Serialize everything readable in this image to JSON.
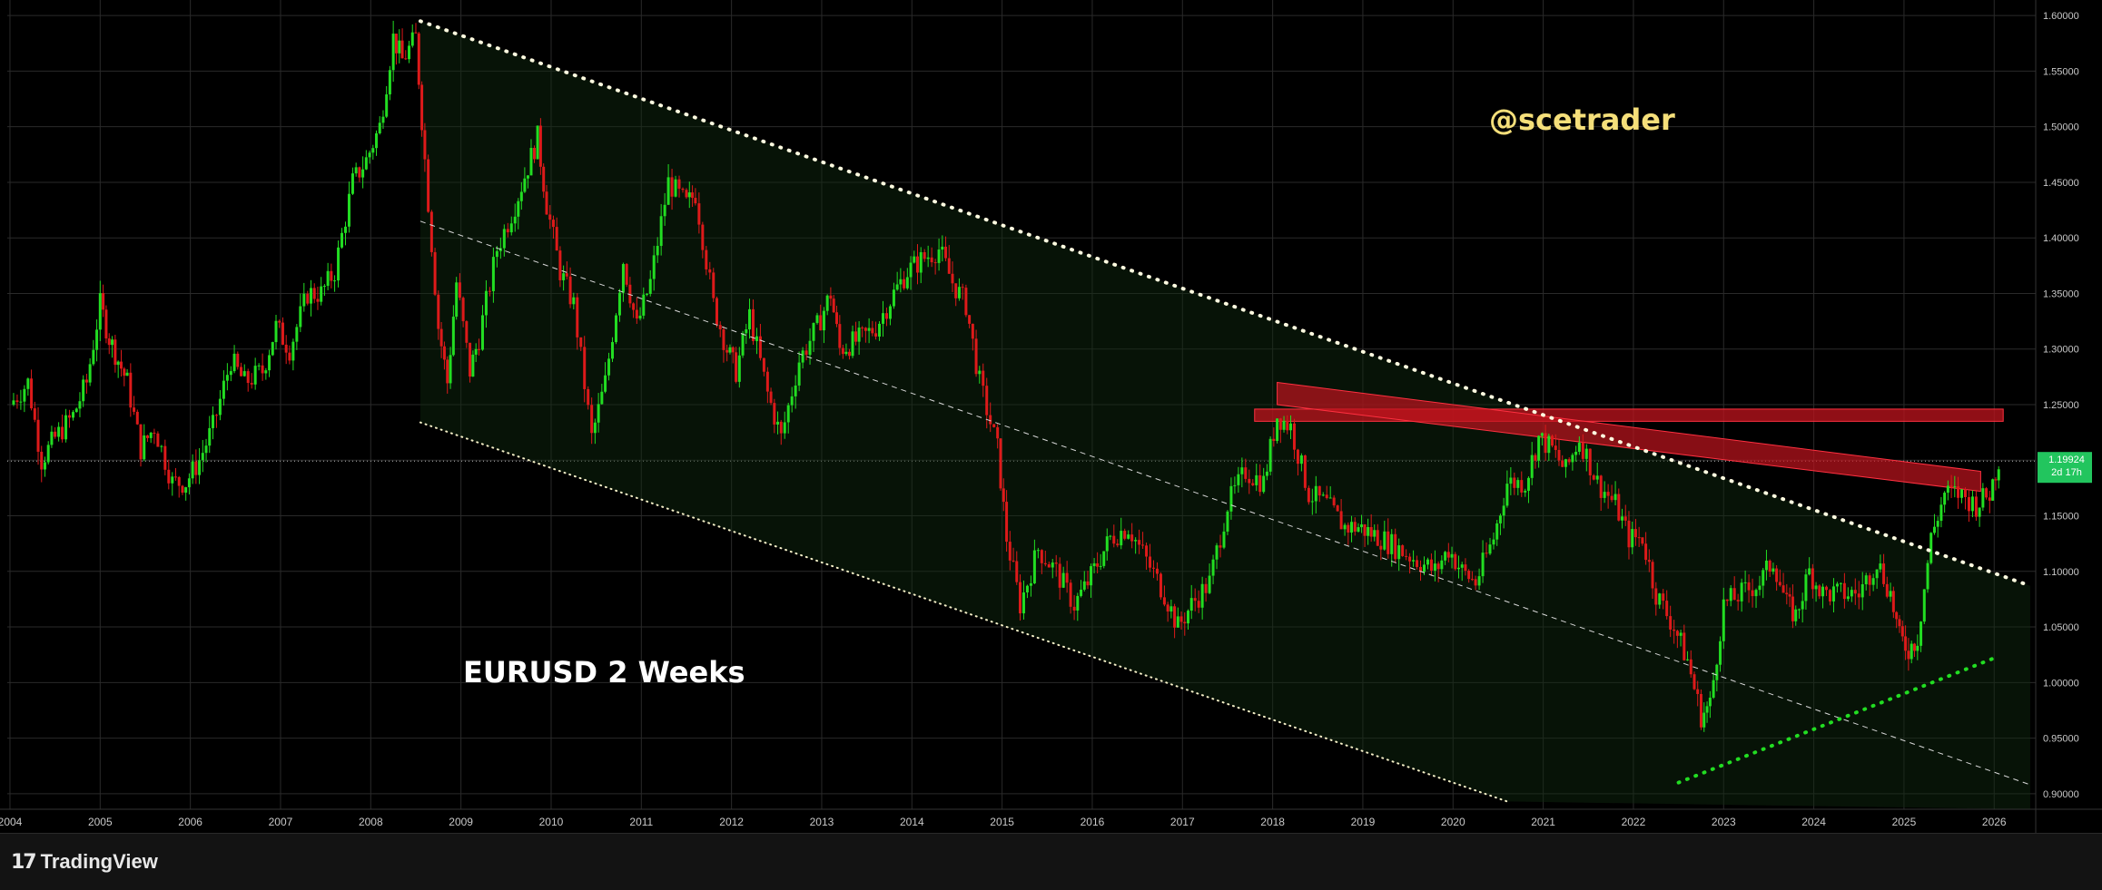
{
  "chart_data": {
    "type": "candlestick",
    "symbol_label": "EURUSD 2 Weeks",
    "watermark": "@scetrader",
    "x_axis_years": [
      "2004",
      "2005",
      "2006",
      "2007",
      "2008",
      "2009",
      "2010",
      "2011",
      "2012",
      "2013",
      "2014",
      "2015",
      "2016",
      "2017",
      "2018",
      "2019",
      "2020",
      "2021",
      "2022",
      "2023",
      "2024",
      "2025",
      "2026"
    ],
    "y_axis_ticks": [
      "1.60000",
      "1.55000",
      "1.50000",
      "1.45000",
      "1.40000",
      "1.35000",
      "1.30000",
      "1.25000",
      "1.20000",
      "1.15000",
      "1.10000",
      "1.05000",
      "1.00000",
      "0.95000",
      "0.90000"
    ],
    "ylim": [
      0.886,
      1.614
    ],
    "xlim": [
      2003.97,
      2026.4
    ],
    "last_price": {
      "value": 1.19924,
      "label": "1.19924",
      "countdown": "2d 17h",
      "color": "#22c55e"
    },
    "price_path": [
      [
        2004.0,
        1.25
      ],
      [
        2004.2,
        1.27
      ],
      [
        2004.35,
        1.2
      ],
      [
        2004.5,
        1.22
      ],
      [
        2004.7,
        1.24
      ],
      [
        2004.85,
        1.27
      ],
      [
        2005.0,
        1.34
      ],
      [
        2005.1,
        1.31
      ],
      [
        2005.2,
        1.29
      ],
      [
        2005.3,
        1.27
      ],
      [
        2005.45,
        1.21
      ],
      [
        2005.6,
        1.23
      ],
      [
        2005.8,
        1.18
      ],
      [
        2005.95,
        1.18
      ],
      [
        2006.1,
        1.2
      ],
      [
        2006.25,
        1.23
      ],
      [
        2006.45,
        1.29
      ],
      [
        2006.6,
        1.27
      ],
      [
        2006.8,
        1.28
      ],
      [
        2006.95,
        1.32
      ],
      [
        2007.1,
        1.3
      ],
      [
        2007.3,
        1.35
      ],
      [
        2007.45,
        1.35
      ],
      [
        2007.6,
        1.37
      ],
      [
        2007.8,
        1.45
      ],
      [
        2007.95,
        1.47
      ],
      [
        2008.1,
        1.5
      ],
      [
        2008.25,
        1.58
      ],
      [
        2008.35,
        1.56
      ],
      [
        2008.5,
        1.58
      ],
      [
        2008.6,
        1.47
      ],
      [
        2008.75,
        1.32
      ],
      [
        2008.85,
        1.27
      ],
      [
        2008.95,
        1.36
      ],
      [
        2009.1,
        1.28
      ],
      [
        2009.2,
        1.31
      ],
      [
        2009.4,
        1.39
      ],
      [
        2009.6,
        1.43
      ],
      [
        2009.85,
        1.49
      ],
      [
        2009.95,
        1.43
      ],
      [
        2010.1,
        1.37
      ],
      [
        2010.25,
        1.34
      ],
      [
        2010.45,
        1.22
      ],
      [
        2010.6,
        1.27
      ],
      [
        2010.8,
        1.38
      ],
      [
        2010.95,
        1.32
      ],
      [
        2011.1,
        1.36
      ],
      [
        2011.3,
        1.45
      ],
      [
        2011.5,
        1.43
      ],
      [
        2011.6,
        1.44
      ],
      [
        2011.8,
        1.34
      ],
      [
        2011.95,
        1.3
      ],
      [
        2012.05,
        1.28
      ],
      [
        2012.2,
        1.33
      ],
      [
        2012.4,
        1.26
      ],
      [
        2012.55,
        1.22
      ],
      [
        2012.75,
        1.29
      ],
      [
        2012.95,
        1.32
      ],
      [
        2013.1,
        1.35
      ],
      [
        2013.2,
        1.3
      ],
      [
        2013.45,
        1.31
      ],
      [
        2013.6,
        1.32
      ],
      [
        2013.8,
        1.35
      ],
      [
        2013.95,
        1.37
      ],
      [
        2014.1,
        1.38
      ],
      [
        2014.3,
        1.39
      ],
      [
        2014.45,
        1.36
      ],
      [
        2014.6,
        1.34
      ],
      [
        2014.75,
        1.27
      ],
      [
        2014.95,
        1.21
      ],
      [
        2015.05,
        1.13
      ],
      [
        2015.2,
        1.07
      ],
      [
        2015.4,
        1.12
      ],
      [
        2015.6,
        1.1
      ],
      [
        2015.8,
        1.07
      ],
      [
        2015.95,
        1.09
      ],
      [
        2016.2,
        1.13
      ],
      [
        2016.4,
        1.14
      ],
      [
        2016.6,
        1.11
      ],
      [
        2016.8,
        1.08
      ],
      [
        2016.95,
        1.05
      ],
      [
        2017.1,
        1.07
      ],
      [
        2017.3,
        1.09
      ],
      [
        2017.5,
        1.16
      ],
      [
        2017.7,
        1.19
      ],
      [
        2017.9,
        1.18
      ],
      [
        2018.05,
        1.24
      ],
      [
        2018.2,
        1.23
      ],
      [
        2018.4,
        1.17
      ],
      [
        2018.6,
        1.16
      ],
      [
        2018.8,
        1.14
      ],
      [
        2018.95,
        1.14
      ],
      [
        2019.2,
        1.13
      ],
      [
        2019.4,
        1.12
      ],
      [
        2019.6,
        1.11
      ],
      [
        2019.8,
        1.1
      ],
      [
        2019.95,
        1.12
      ],
      [
        2020.1,
        1.1
      ],
      [
        2020.25,
        1.09
      ],
      [
        2020.45,
        1.13
      ],
      [
        2020.6,
        1.18
      ],
      [
        2020.8,
        1.18
      ],
      [
        2020.95,
        1.22
      ],
      [
        2021.1,
        1.21
      ],
      [
        2021.25,
        1.19
      ],
      [
        2021.4,
        1.22
      ],
      [
        2021.6,
        1.18
      ],
      [
        2021.8,
        1.16
      ],
      [
        2021.95,
        1.13
      ],
      [
        2022.1,
        1.13
      ],
      [
        2022.25,
        1.08
      ],
      [
        2022.45,
        1.05
      ],
      [
        2022.6,
        1.02
      ],
      [
        2022.75,
        0.97
      ],
      [
        2022.85,
        0.98
      ],
      [
        2023.0,
        1.07
      ],
      [
        2023.2,
        1.08
      ],
      [
        2023.4,
        1.09
      ],
      [
        2023.55,
        1.11
      ],
      [
        2023.7,
        1.07
      ],
      [
        2023.8,
        1.06
      ],
      [
        2023.95,
        1.1
      ],
      [
        2024.1,
        1.08
      ],
      [
        2024.3,
        1.08
      ],
      [
        2024.5,
        1.08
      ],
      [
        2024.7,
        1.11
      ],
      [
        2024.85,
        1.08
      ],
      [
        2024.95,
        1.04
      ],
      [
        2025.05,
        1.03
      ],
      [
        2025.15,
        1.04
      ],
      [
        2025.3,
        1.13
      ],
      [
        2025.45,
        1.17
      ],
      [
        2025.6,
        1.17
      ],
      [
        2025.8,
        1.16
      ],
      [
        2025.95,
        1.17
      ],
      [
        2026.05,
        1.2
      ]
    ],
    "trendlines": [
      {
        "role": "upper-channel-dotted",
        "from": [
          2008.55,
          1.595
        ],
        "to": [
          2026.4,
          1.087
        ],
        "color": "#fffbe0"
      },
      {
        "role": "mid-channel-dashed",
        "from": [
          2008.55,
          1.415
        ],
        "to": [
          2026.4,
          0.908
        ],
        "color": "#d8d8d8"
      },
      {
        "role": "lower-channel-dotted",
        "from": [
          2008.55,
          1.234
        ],
        "to": [
          2020.6,
          0.893
        ],
        "color": "#f5f0c8"
      },
      {
        "role": "support-green-dotted",
        "from": [
          2022.5,
          0.91
        ],
        "to": [
          2026.0,
          1.022
        ],
        "color": "#22dd22"
      }
    ],
    "zones": [
      {
        "role": "horizontal-resistance-zone",
        "x": [
          2017.8,
          2026.1
        ],
        "y": [
          1.235,
          1.246
        ],
        "color": "#c0141e"
      },
      {
        "role": "sloped-resistance-zone",
        "corners": [
          [
            2018.05,
            1.27
          ],
          [
            2025.85,
            1.19
          ],
          [
            2025.85,
            1.172
          ],
          [
            2018.05,
            1.25
          ]
        ],
        "color": "#c0141e"
      }
    ],
    "grid": true,
    "colors": {
      "up": "#22dd22",
      "down": "#dd1a1a",
      "grid": "#2a2a2a",
      "background": "#000000"
    }
  },
  "footer": {
    "brand": "TradingView",
    "logo_glyph": "17"
  }
}
